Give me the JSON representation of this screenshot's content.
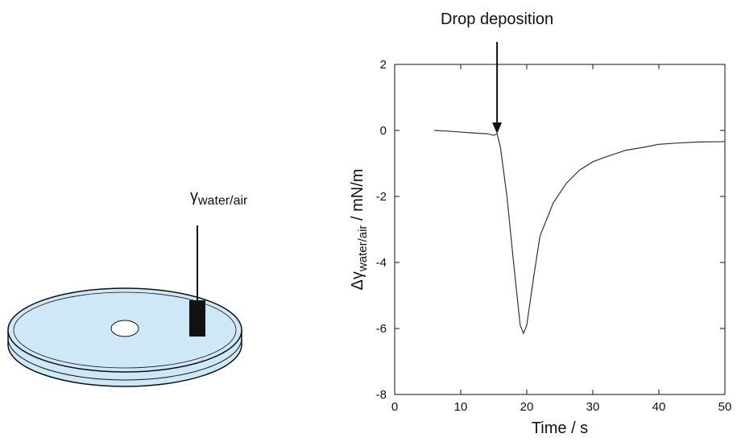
{
  "diagram": {
    "label": {
      "symbol": "γ",
      "subscript": "water/air"
    }
  },
  "chart_data": {
    "type": "line",
    "annotation": {
      "text": "Drop deposition",
      "x": 15.5,
      "y": -0.1
    },
    "xlabel": "Time / s",
    "ylabel": {
      "symbol": "Δγ",
      "subscript": "water/air",
      "unit": " / mN/m"
    },
    "x": [
      6,
      8,
      10,
      12,
      14,
      15,
      15.5,
      16,
      17,
      18,
      19,
      19.5,
      20,
      21,
      22,
      24,
      26,
      28,
      30,
      32,
      35,
      38,
      40,
      43,
      46,
      50
    ],
    "values": [
      0,
      -0.02,
      -0.05,
      -0.08,
      -0.1,
      -0.15,
      -0.1,
      -0.5,
      -2,
      -4,
      -5.9,
      -6.15,
      -5.9,
      -4.5,
      -3.2,
      -2.2,
      -1.6,
      -1.2,
      -0.95,
      -0.8,
      -0.6,
      -0.5,
      -0.42,
      -0.38,
      -0.35,
      -0.34
    ],
    "color": "#333333",
    "xlim": [
      0,
      50
    ],
    "xticks": [
      0,
      10,
      20,
      30,
      40,
      50
    ],
    "ylim": [
      -8,
      2
    ],
    "yticks": [
      -8,
      -6,
      -4,
      -2,
      0,
      2
    ],
    "grid": false
  }
}
